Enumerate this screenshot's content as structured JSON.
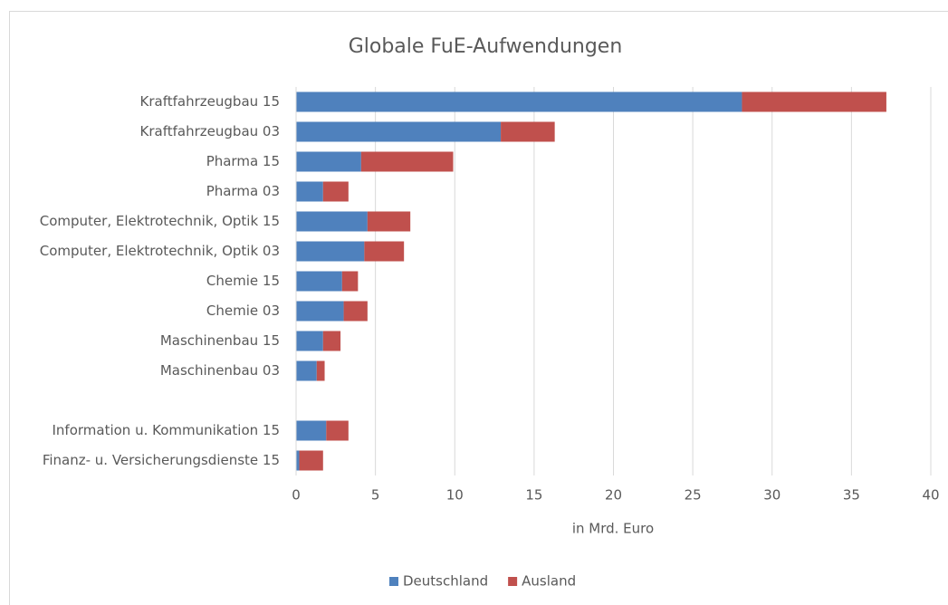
{
  "chart_data": {
    "type": "stacked_barh",
    "title": "Globale FuE-Aufwendungen",
    "x_label": "in Mrd. Euro",
    "categories": [
      "Kraftfahrzeugbau 15",
      "Kraftfahrzeugbau 03",
      "Pharma 15",
      "Pharma 03",
      "Computer, Elektrotechnik, Optik 15",
      "Computer, Elektrotechnik, Optik 03",
      "Chemie 15",
      "Chemie 03",
      "Maschinenbau 15",
      "Maschinenbau 03",
      null,
      "Information u. Kommunikation 15",
      "Finanz- u. Versicherungsdienste 15"
    ],
    "series": [
      {
        "name": "Deutschland",
        "color": "#4f81bd",
        "values": [
          28.1,
          12.9,
          4.1,
          1.7,
          4.5,
          4.3,
          2.9,
          3.0,
          1.7,
          1.3,
          null,
          1.9,
          0.2
        ]
      },
      {
        "name": "Ausland",
        "color": "#c0504d",
        "values": [
          9.1,
          3.4,
          5.8,
          1.6,
          2.7,
          2.5,
          1.0,
          1.5,
          1.1,
          0.5,
          null,
          1.4,
          1.5
        ]
      }
    ],
    "xlim": [
      0,
      40
    ],
    "xticks": [
      0,
      5,
      10,
      15,
      20,
      25,
      30,
      35,
      40
    ],
    "grid": true,
    "legend": "bottom"
  }
}
